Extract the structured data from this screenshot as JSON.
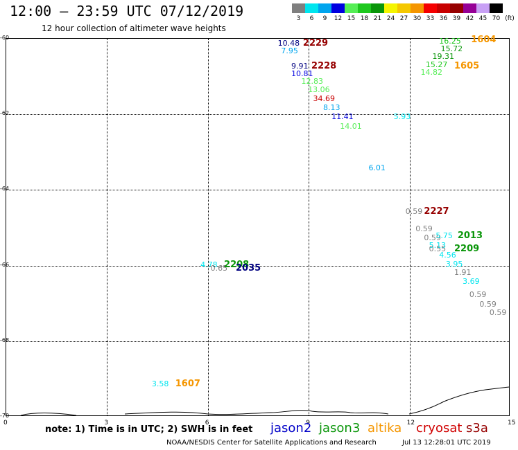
{
  "title": "12:00 — 23:59 UTC 07/12/2019",
  "subtitle": "12 hour collection of altimeter wave heights",
  "scale": {
    "unit": "(ft)",
    "bins": [
      {
        "label": "3",
        "color": "#7f7f7f"
      },
      {
        "label": "6",
        "color": "#00e5ee"
      },
      {
        "label": "9",
        "color": "#00a5ee"
      },
      {
        "label": "12",
        "color": "#0000e0"
      },
      {
        "label": "15",
        "color": "#55ee55"
      },
      {
        "label": "18",
        "color": "#1ec81e"
      },
      {
        "label": "21",
        "color": "#0a960a"
      },
      {
        "label": "24",
        "color": "#f5f500"
      },
      {
        "label": "27",
        "color": "#f5c800"
      },
      {
        "label": "30",
        "color": "#f59600"
      },
      {
        "label": "33",
        "color": "#f50000"
      },
      {
        "label": "36",
        "color": "#c80000"
      },
      {
        "label": "39",
        "color": "#960000"
      },
      {
        "label": "42",
        "color": "#960096"
      },
      {
        "label": "45",
        "color": "#c8a0f5"
      },
      {
        "label": "70",
        "color": "#000000"
      }
    ]
  },
  "axes": {
    "x_ticks": [
      "0",
      "3",
      "6",
      "9",
      "12",
      "15"
    ],
    "x_range": [
      0,
      15
    ],
    "y_ticks": [
      "-60",
      "-62",
      "-64",
      "-66",
      "-68",
      "-70"
    ],
    "y_range": [
      -70,
      -60
    ]
  },
  "wave_heights": [
    {
      "text": "10.48",
      "x": 8.1,
      "y": -60.15,
      "color": "#000080"
    },
    {
      "text": "7.95",
      "x": 8.2,
      "y": -60.35,
      "color": "#00a5ee"
    },
    {
      "text": "9.91",
      "x": 8.5,
      "y": -60.75,
      "color": "#000080"
    },
    {
      "text": "10.81",
      "x": 8.5,
      "y": -60.95,
      "color": "#0000e0"
    },
    {
      "text": "12.83",
      "x": 8.8,
      "y": -61.15,
      "color": "#55ee55"
    },
    {
      "text": "13.06",
      "x": 9.0,
      "y": -61.38,
      "color": "#55ee55"
    },
    {
      "text": "34.69",
      "x": 9.15,
      "y": -61.62,
      "color": "#c80000"
    },
    {
      "text": "8.13",
      "x": 9.45,
      "y": -61.85,
      "color": "#00a5ee"
    },
    {
      "text": "11.41",
      "x": 9.7,
      "y": -62.08,
      "color": "#0000e0"
    },
    {
      "text": "14.01",
      "x": 9.95,
      "y": -62.35,
      "color": "#55ee55"
    },
    {
      "text": "5.93",
      "x": 11.55,
      "y": -62.08,
      "color": "#00e5ee"
    },
    {
      "text": "6.01",
      "x": 10.8,
      "y": -63.45,
      "color": "#00a5ee"
    },
    {
      "text": "16.25",
      "x": 12.9,
      "y": -60.1,
      "color": "#1ec81e"
    },
    {
      "text": "15.72",
      "x": 12.95,
      "y": -60.3,
      "color": "#0a960a"
    },
    {
      "text": "19.31",
      "x": 12.7,
      "y": -60.5,
      "color": "#0a960a"
    },
    {
      "text": "15.27",
      "x": 12.5,
      "y": -60.72,
      "color": "#1ec81e"
    },
    {
      "text": "14.82",
      "x": 12.35,
      "y": -60.92,
      "color": "#55ee55"
    },
    {
      "text": "0.59",
      "x": 11.9,
      "y": -64.6,
      "color": "#7f7f7f"
    },
    {
      "text": "0.59",
      "x": 12.2,
      "y": -65.05,
      "color": "#7f7f7f"
    },
    {
      "text": "0.59",
      "x": 12.45,
      "y": -65.3,
      "color": "#7f7f7f"
    },
    {
      "text": "5.75",
      "x": 12.8,
      "y": -65.23,
      "color": "#00e5ee"
    },
    {
      "text": "5.13",
      "x": 12.6,
      "y": -65.5,
      "color": "#00e5ee"
    },
    {
      "text": "0.55",
      "x": 12.6,
      "y": -65.58,
      "color": "#7f7f7f"
    },
    {
      "text": "4.56",
      "x": 12.9,
      "y": -65.75,
      "color": "#00e5ee"
    },
    {
      "text": "3.95",
      "x": 13.1,
      "y": -65.98,
      "color": "#00e5ee"
    },
    {
      "text": "1.91",
      "x": 13.35,
      "y": -66.2,
      "color": "#7f7f7f"
    },
    {
      "text": "3.69",
      "x": 13.6,
      "y": -66.45,
      "color": "#00e5ee"
    },
    {
      "text": "0.59",
      "x": 13.8,
      "y": -66.8,
      "color": "#7f7f7f"
    },
    {
      "text": "0.59",
      "x": 14.1,
      "y": -67.05,
      "color": "#7f7f7f"
    },
    {
      "text": "0.59",
      "x": 14.4,
      "y": -67.28,
      "color": "#7f7f7f"
    },
    {
      "text": "4.78",
      "x": 5.8,
      "y": -66.0,
      "color": "#00e5ee"
    },
    {
      "text": "0.65",
      "x": 6.1,
      "y": -66.1,
      "color": "#7f7f7f"
    },
    {
      "text": "3.58",
      "x": 4.35,
      "y": -69.15,
      "color": "#00e5ee"
    }
  ],
  "pass_ids": [
    {
      "text": "2229",
      "x": 8.85,
      "y": -60.15,
      "color": "#960000"
    },
    {
      "text": "2228",
      "x": 9.1,
      "y": -60.75,
      "color": "#960000"
    },
    {
      "text": "1604",
      "x": 13.85,
      "y": -60.05,
      "color": "#f59600"
    },
    {
      "text": "1605",
      "x": 13.35,
      "y": -60.75,
      "color": "#f59600"
    },
    {
      "text": "2227",
      "x": 12.45,
      "y": -64.6,
      "color": "#960000"
    },
    {
      "text": "2013",
      "x": 13.45,
      "y": -65.23,
      "color": "#0a960a"
    },
    {
      "text": "2209",
      "x": 13.35,
      "y": -65.58,
      "color": "#0a960a"
    },
    {
      "text": "2208",
      "x": 6.5,
      "y": -66.0,
      "color": "#0a960a"
    },
    {
      "text": "2035",
      "x": 6.85,
      "y": -66.1,
      "color": "#000080"
    },
    {
      "text": "1607",
      "x": 5.05,
      "y": -69.15,
      "color": "#f59600"
    }
  ],
  "footer": {
    "note": "note: 1) Time is in UTC; 2) SWH is in feet",
    "satellites": [
      {
        "name": "jason2",
        "color": "#0000c8"
      },
      {
        "name": "jason3",
        "color": "#0a960a"
      },
      {
        "name": "altika",
        "color": "#f59600"
      },
      {
        "name": "cryosat",
        "color": "#d00000"
      },
      {
        "name": "s3a",
        "color": "#960000"
      }
    ],
    "credit": "NOAA/NESDIS Center for Satellite Applications and Research",
    "timestamp": "Jul 13 12:28:01 UTC 2019"
  }
}
